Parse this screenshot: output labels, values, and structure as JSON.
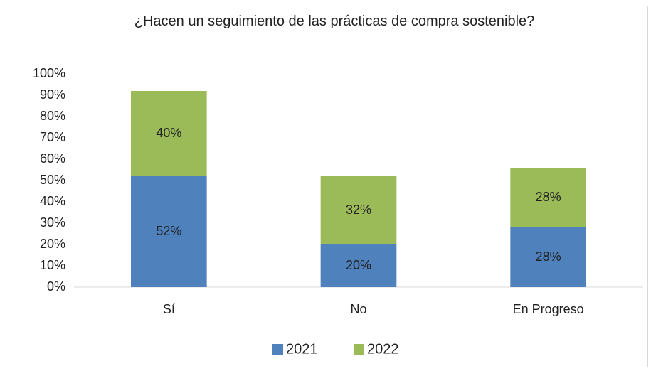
{
  "chart_data": {
    "type": "stacked_bar",
    "title": "¿Hacen un seguimiento de las prácticas de compra sostenible?",
    "categories": [
      "Sí",
      "No",
      "En Progreso"
    ],
    "series": [
      {
        "name": "2021",
        "color": "#4f81bd",
        "values": [
          52,
          20,
          28
        ],
        "value_labels": [
          "52%",
          "20%",
          "28%"
        ]
      },
      {
        "name": "2022",
        "color": "#9bbb59",
        "values": [
          40,
          32,
          28
        ],
        "value_labels": [
          "40%",
          "32%",
          "28%"
        ]
      }
    ],
    "ylim": [
      0,
      100
    ],
    "yticks": [
      {
        "value": 0,
        "label": "0%"
      },
      {
        "value": 10,
        "label": "10%"
      },
      {
        "value": 20,
        "label": "20%"
      },
      {
        "value": 30,
        "label": "30%"
      },
      {
        "value": 40,
        "label": "40%"
      },
      {
        "value": 50,
        "label": "50%"
      },
      {
        "value": 60,
        "label": "60%"
      },
      {
        "value": 70,
        "label": "70%"
      },
      {
        "value": 80,
        "label": "80%"
      },
      {
        "value": 90,
        "label": "90%"
      },
      {
        "value": 100,
        "label": "100%"
      }
    ],
    "grid": false,
    "legend": "bottom"
  }
}
